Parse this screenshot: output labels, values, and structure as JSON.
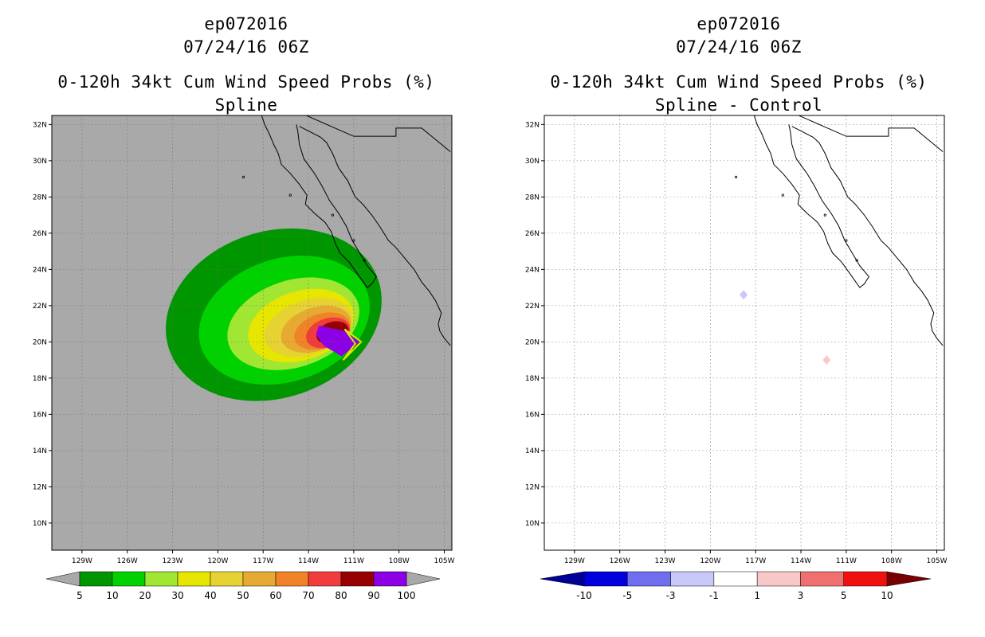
{
  "left": {
    "title_line1": "ep072016",
    "title_line2": "07/24/16 06Z",
    "title_line3": "0-120h 34kt Cum Wind Speed Probs (%)",
    "title_line4": "Spline",
    "background": "#a9a9a9",
    "colorbar": {
      "labels": [
        "5",
        "10",
        "20",
        "30",
        "40",
        "50",
        "60",
        "70",
        "80",
        "90",
        "100"
      ],
      "colors": [
        "#009600",
        "#00d200",
        "#a0e632",
        "#e6e600",
        "#e6d232",
        "#e6aa32",
        "#f08228",
        "#f03c3c",
        "#960000",
        "#8c00e6"
      ],
      "end_low": "#a9a9a9",
      "end_high": "#a9a9a9"
    }
  },
  "right": {
    "title_line1": "ep072016",
    "title_line2": "07/24/16 06Z",
    "title_line3": "0-120h 34kt Cum Wind Speed Probs (%)",
    "title_line4": "Spline - Control",
    "background": "#ffffff",
    "colorbar": {
      "labels": [
        "-10",
        "-5",
        "-3",
        "-1",
        "1",
        "3",
        "5",
        "10"
      ],
      "colors": [
        "#0000dc",
        "#6e6eee",
        "#c8c8f8",
        "#ffffff",
        "#f8c8c8",
        "#f07070",
        "#f01010"
      ],
      "end_low": "#000096",
      "end_high": "#780000"
    }
  },
  "chart_data": [
    {
      "type": "contour-map",
      "title": "0-120h 34kt Cum Wind Speed Probs (%) - Spline",
      "x_ticks": [
        "129W",
        "126W",
        "123W",
        "120W",
        "117W",
        "114W",
        "111W",
        "108W",
        "105W"
      ],
      "y_ticks": [
        "32N",
        "30N",
        "28N",
        "26N",
        "24N",
        "22N",
        "20N",
        "18N",
        "16N",
        "14N",
        "12N",
        "10N"
      ],
      "x_range_lon": [
        -131.0,
        -104.5
      ],
      "y_range_lat": [
        8.5,
        32.5
      ],
      "contour_levels": [
        5,
        10,
        20,
        30,
        40,
        50,
        60,
        70,
        80,
        90,
        100
      ],
      "storm_center": {
        "lon": -110.5,
        "lat": 20.0
      },
      "prob_field_center": {
        "lon": -113.6,
        "lat": 21.0
      }
    },
    {
      "type": "contour-map",
      "title": "0-120h 34kt Cum Wind Speed Probs (%) - Spline - Control",
      "x_ticks": [
        "129W",
        "126W",
        "123W",
        "120W",
        "117W",
        "114W",
        "111W",
        "108W",
        "105W"
      ],
      "y_ticks": [
        "32N",
        "30N",
        "28N",
        "26N",
        "24N",
        "22N",
        "20N",
        "18N",
        "16N",
        "14N",
        "12N",
        "10N"
      ],
      "x_range_lon": [
        -131.0,
        -104.5
      ],
      "y_range_lat": [
        8.5,
        32.5
      ],
      "contour_levels": [
        -10,
        -5,
        -3,
        -1,
        1,
        3,
        5,
        10
      ],
      "anomalies": [
        {
          "lon": -117.8,
          "lat": 22.6,
          "sign": "negative",
          "color": "#c8c8f8"
        },
        {
          "lon": -112.3,
          "lat": 19.0,
          "sign": "positive",
          "color": "#f8c8c8"
        }
      ]
    }
  ]
}
